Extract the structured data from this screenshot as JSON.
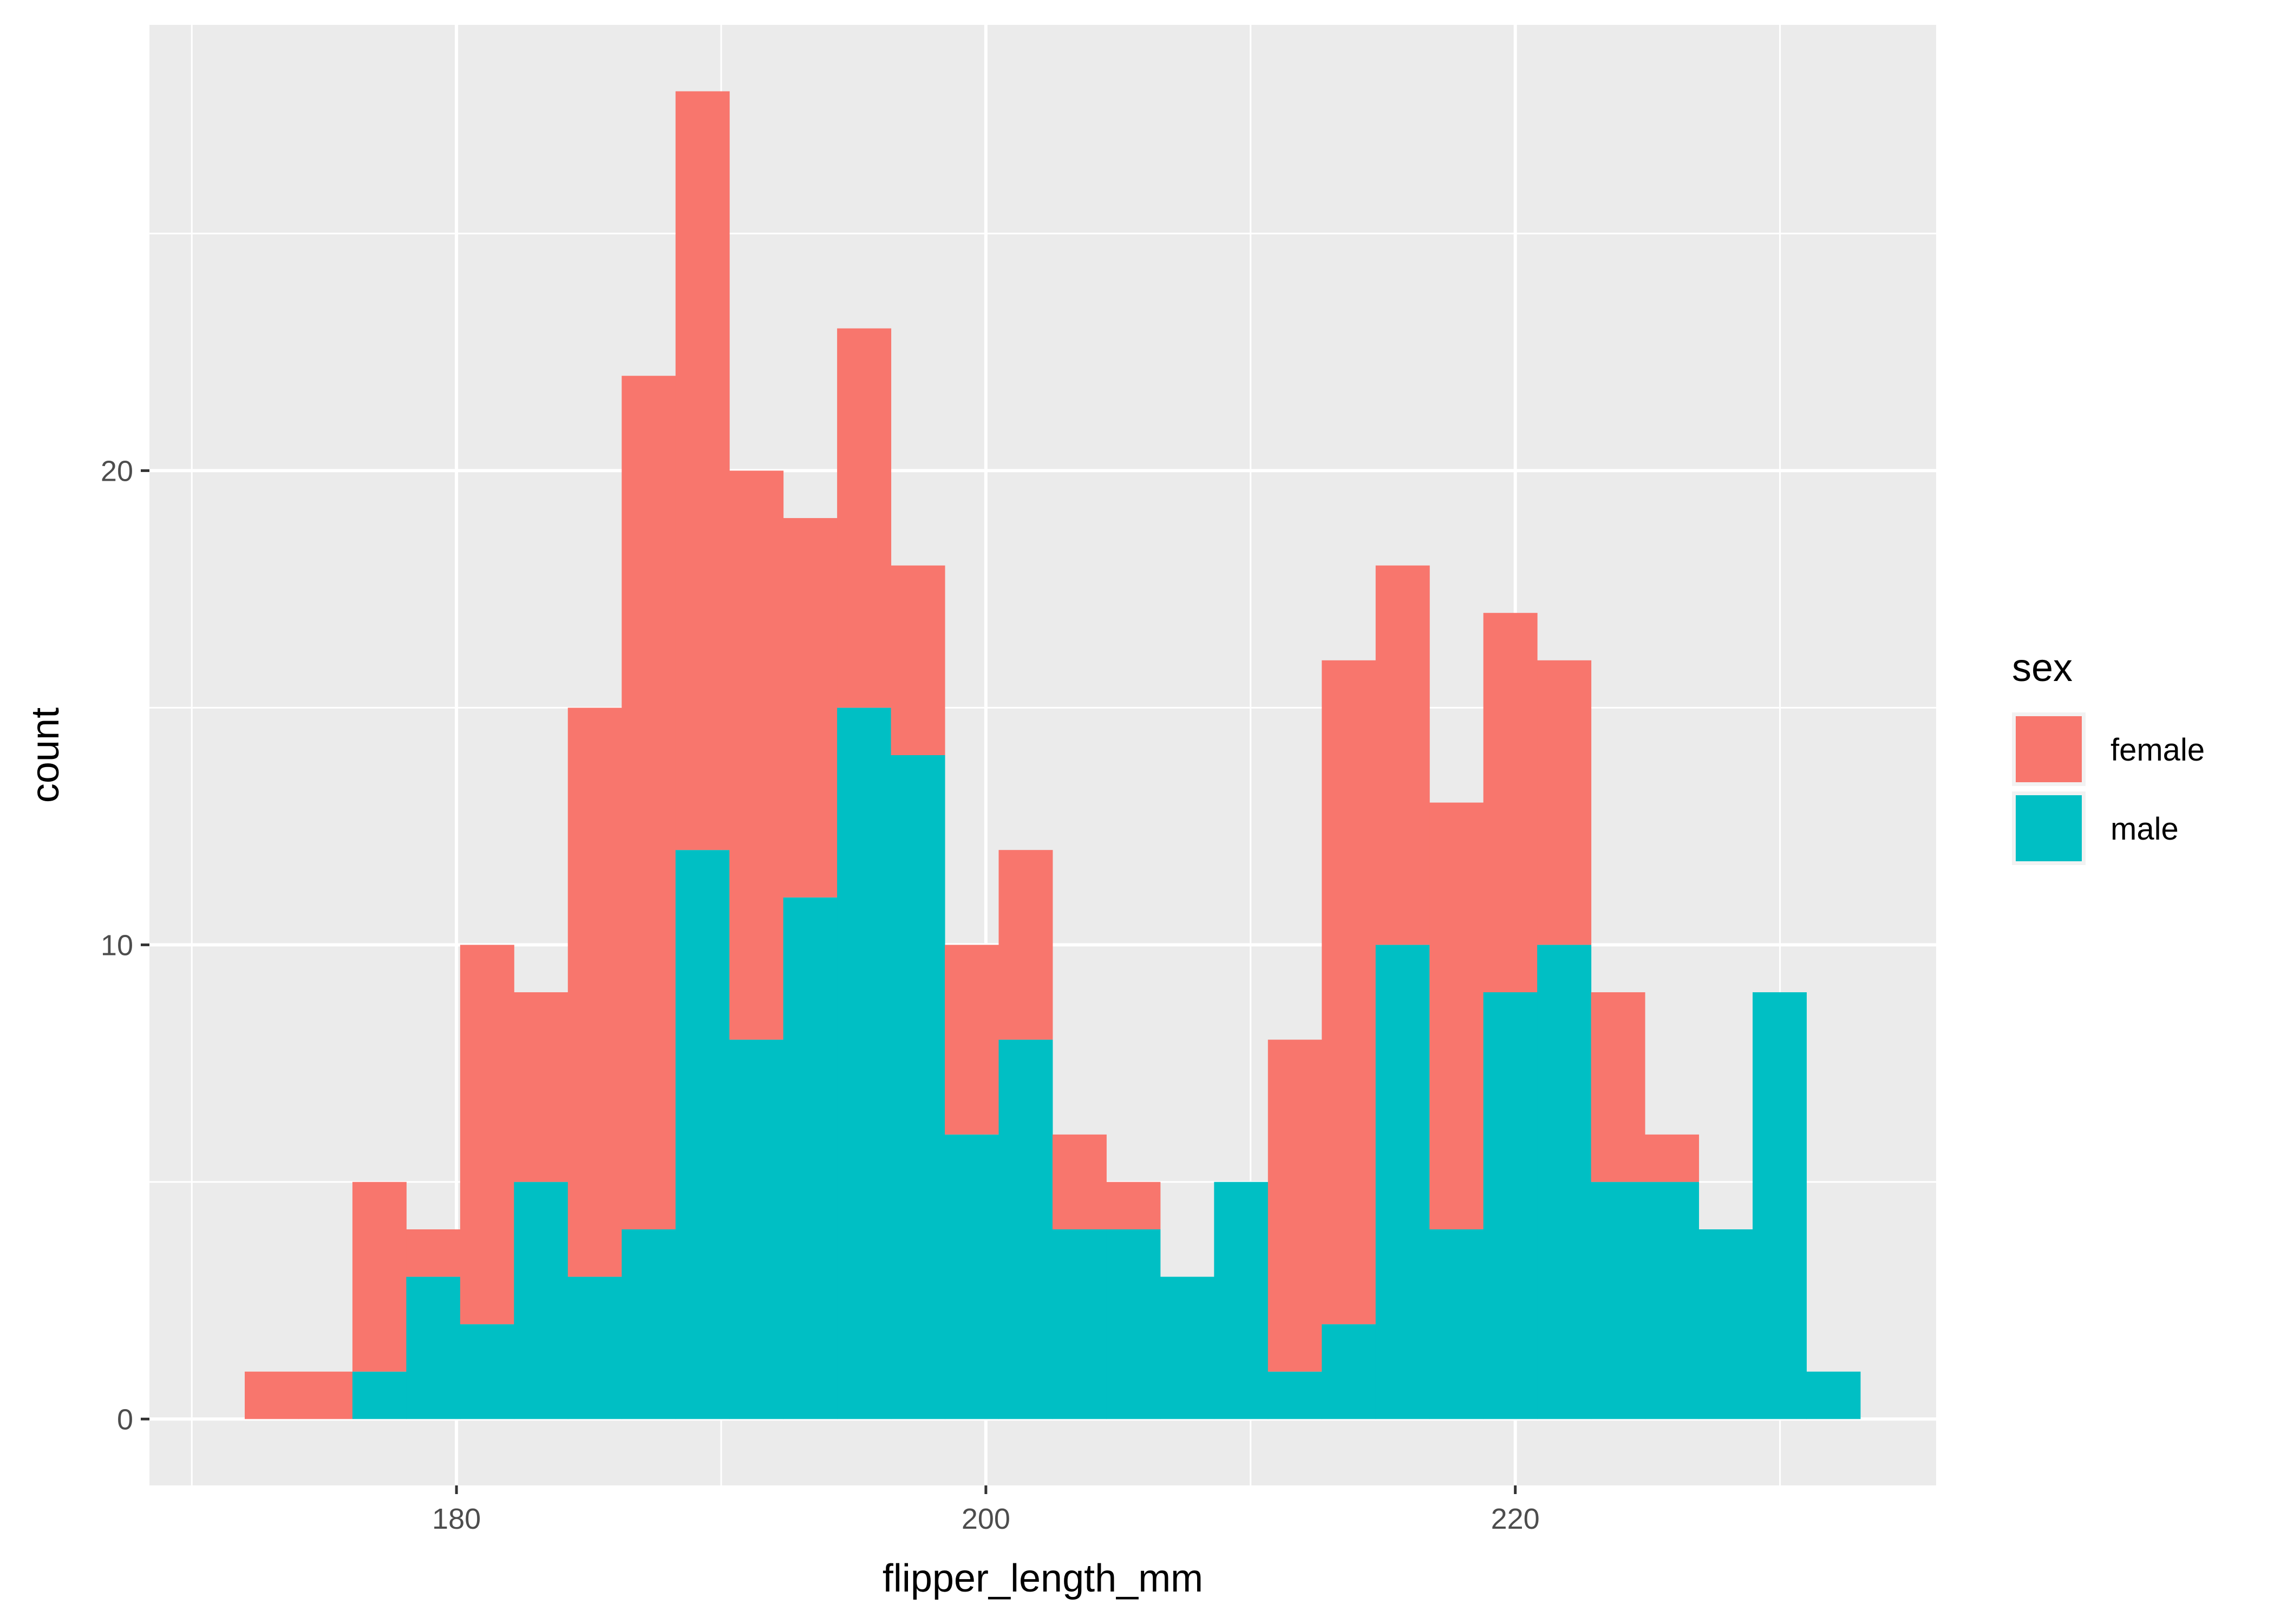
{
  "chart_data": {
    "type": "bar",
    "stacked": true,
    "histogram": true,
    "xlabel": "flipper_length_mm",
    "ylabel": "count",
    "xlim": [
      168.4,
      235.9
    ],
    "ylim": [
      -1.4,
      29.4
    ],
    "x_ticks": [
      180,
      200,
      220
    ],
    "y_ticks": [
      0,
      10,
      20
    ],
    "bin_width": 2.0345,
    "bin_start": 172,
    "grid": true,
    "legend": {
      "title": "sex",
      "position": "right"
    },
    "series": [
      {
        "name": "female",
        "color": "#F8766D",
        "values": [
          1,
          1,
          4,
          1,
          8,
          4,
          12,
          18,
          16,
          12,
          8,
          8,
          4,
          4,
          4,
          2,
          1,
          0,
          0,
          7,
          14,
          8,
          9,
          8,
          6,
          4,
          1,
          0,
          0,
          0,
          0,
          0
        ]
      },
      {
        "name": "male",
        "color": "#00BFC4",
        "values": [
          0,
          0,
          1,
          3,
          2,
          5,
          3,
          4,
          12,
          8,
          11,
          15,
          14,
          6,
          8,
          4,
          4,
          3,
          5,
          1,
          2,
          10,
          4,
          9,
          10,
          5,
          5,
          4,
          9,
          1,
          0,
          0
        ]
      }
    ]
  }
}
